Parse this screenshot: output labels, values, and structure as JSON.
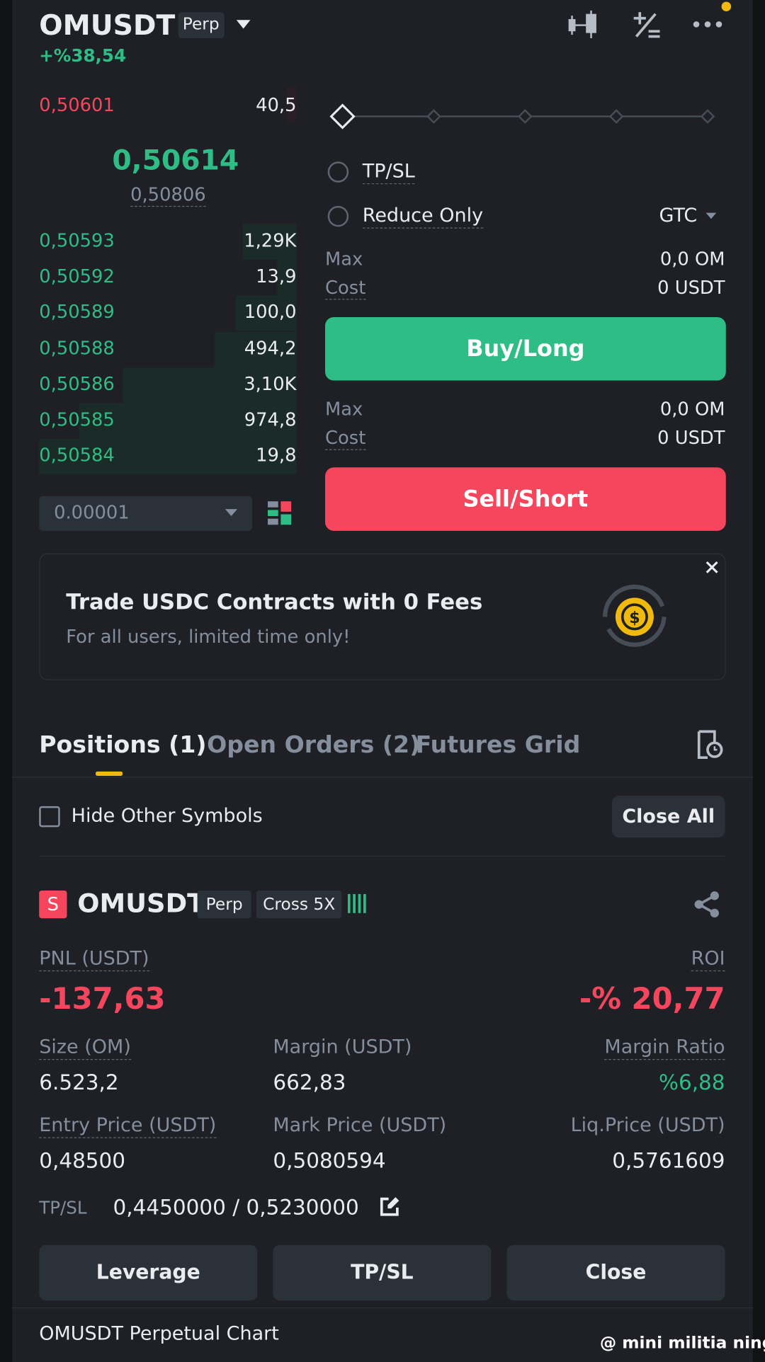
{
  "header": {
    "symbol": "OMUSDT",
    "badge": "Perp",
    "change": "+%38,54"
  },
  "orderbook": {
    "asks": [
      {
        "price": "0,50601",
        "qty": "40,5"
      }
    ],
    "last_price": "0,50614",
    "mark_price": "0,50806",
    "bids": [
      {
        "price": "0,50593",
        "qty": "1,29K"
      },
      {
        "price": "0,50592",
        "qty": "13,9"
      },
      {
        "price": "0,50589",
        "qty": "100,0"
      },
      {
        "price": "0,50588",
        "qty": "494,2"
      },
      {
        "price": "0,50586",
        "qty": "3,10K"
      },
      {
        "price": "0,50585",
        "qty": "974,8"
      },
      {
        "price": "0,50584",
        "qty": "19,8"
      }
    ],
    "tick_size": "0.00001"
  },
  "order_form": {
    "options": [
      "TP/SL",
      "Reduce Only"
    ],
    "time_in_force": "GTC",
    "buy": {
      "max_label": "Max",
      "max": "0,0 OM",
      "cost_label": "Cost",
      "cost": "0 USDT",
      "button": "Buy/Long"
    },
    "sell": {
      "max_label": "Max",
      "max": "0,0 OM",
      "cost_label": "Cost",
      "cost": "0 USDT",
      "button": "Sell/Short"
    }
  },
  "banner": {
    "title": "Trade USDC Contracts with 0 Fees",
    "subtitle": "For all users, limited time only!"
  },
  "tabs": [
    "Positions (1)",
    "Open Orders (2)",
    "Futures Grid"
  ],
  "filter": {
    "label": "Hide Other Symbols",
    "close_all": "Close All"
  },
  "position": {
    "side": "S",
    "symbol": "OMUSDT",
    "badge": "Perp",
    "mode": "Cross 5X",
    "pnl_label": "PNL (USDT)",
    "pnl": "-137,63",
    "roi_label": "ROI",
    "roi": "-% 20,77",
    "fields": [
      {
        "label": "Size (OM)",
        "value": "6.523,2"
      },
      {
        "label": "Margin (USDT)",
        "value": "662,83"
      },
      {
        "label": "Margin Ratio",
        "value": "%6,88"
      },
      {
        "label": "Entry Price (USDT)",
        "value": "0,48500"
      },
      {
        "label": "Mark Price (USDT)",
        "value": "0,5080594"
      },
      {
        "label": "Liq.Price (USDT)",
        "value": "0,5761609"
      }
    ],
    "tpsl_label": "TP/SL",
    "tpsl": "0,4450000 / 0,5230000",
    "buttons": [
      "Leverage",
      "TP/SL",
      "Close"
    ]
  },
  "footer": {
    "title": "OMUSDT Perpetual  Chart",
    "watermark": "@ mini militia ning"
  }
}
